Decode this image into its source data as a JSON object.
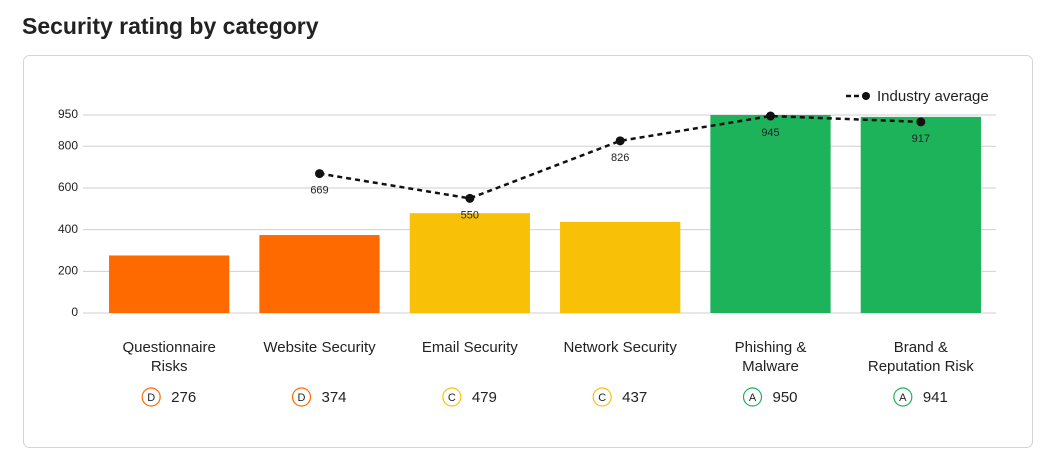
{
  "chart_data": {
    "type": "bar",
    "title": "Security rating by category",
    "categories": [
      "Questionnaire Risks",
      "Website Security",
      "Email Security",
      "Network Security",
      "Phishing & Malware",
      "Brand & Reputation Risk"
    ],
    "values": [
      276,
      374,
      479,
      437,
      950,
      941
    ],
    "colors": [
      "#ff6a00",
      "#ff6a00",
      "#f8c108",
      "#f8c108",
      "#1db35a",
      "#1db35a"
    ],
    "grades": [
      "D",
      "D",
      "C",
      "C",
      "A",
      "A"
    ],
    "series": [
      {
        "name": "Industry average",
        "type": "line",
        "color": "#111111",
        "values": [
          null,
          669,
          550,
          826,
          945,
          917
        ]
      }
    ],
    "ylim": [
      0,
      950
    ],
    "yticks": [
      0,
      200,
      400,
      600,
      800,
      950
    ],
    "grid": true,
    "legend": "top-right"
  }
}
